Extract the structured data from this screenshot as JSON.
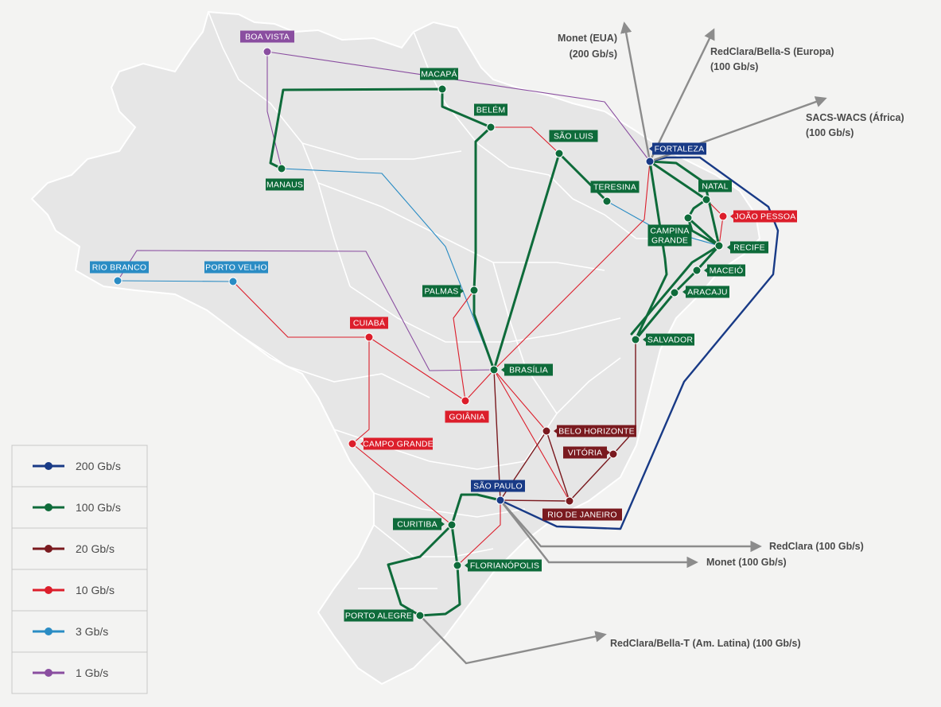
{
  "colors": {
    "c200": "#183a86",
    "c100": "#0e6b3a",
    "c20": "#7a1a1f",
    "c10": "#dc1e2b",
    "c3": "#2a8cc4",
    "c1": "#8a4ea0",
    "intl": "#8c8c8c",
    "land": "#e6e6e6",
    "border": "#ffffff"
  },
  "legend": [
    {
      "speed": "200",
      "label": "200 Gb/s"
    },
    {
      "speed": "100",
      "label": "100 Gb/s"
    },
    {
      "speed": "20",
      "label": "20 Gb/s"
    },
    {
      "speed": "10",
      "label": "10 Gb/s"
    },
    {
      "speed": "3",
      "label": "3 Gb/s"
    },
    {
      "speed": "1",
      "label": "1 Gb/s"
    }
  ],
  "nodes": [
    {
      "id": "boavista",
      "lines": [
        "BOA VISTA"
      ],
      "speed": "1"
    },
    {
      "id": "macapa",
      "lines": [
        "MACAPÁ"
      ],
      "speed": "100"
    },
    {
      "id": "belem",
      "lines": [
        "BELÉM"
      ],
      "speed": "100"
    },
    {
      "id": "manaus",
      "lines": [
        "MANAUS"
      ],
      "speed": "100"
    },
    {
      "id": "saoluis",
      "lines": [
        "SÃO LUIS"
      ],
      "speed": "100"
    },
    {
      "id": "teresina",
      "lines": [
        "TERESINA"
      ],
      "speed": "100"
    },
    {
      "id": "fortaleza",
      "lines": [
        "FORTALEZA"
      ],
      "speed": "200"
    },
    {
      "id": "natal",
      "lines": [
        "NATAL"
      ],
      "speed": "100"
    },
    {
      "id": "joaopessoa",
      "lines": [
        "JOÃO PESSOA"
      ],
      "speed": "10"
    },
    {
      "id": "campinagrande",
      "lines": [
        "CAMPINA",
        "GRANDE"
      ],
      "speed": "100"
    },
    {
      "id": "recife",
      "lines": [
        "RECIFE"
      ],
      "speed": "100"
    },
    {
      "id": "maceio",
      "lines": [
        "MACEIÓ"
      ],
      "speed": "100"
    },
    {
      "id": "aracaju",
      "lines": [
        "ARACAJU"
      ],
      "speed": "100"
    },
    {
      "id": "salvador",
      "lines": [
        "SALVADOR"
      ],
      "speed": "100"
    },
    {
      "id": "riobranco",
      "lines": [
        "RIO BRANCO"
      ],
      "speed": "3"
    },
    {
      "id": "portovelho",
      "lines": [
        "PORTO VELHO"
      ],
      "speed": "3"
    },
    {
      "id": "palmas",
      "lines": [
        "PALMAS"
      ],
      "speed": "100"
    },
    {
      "id": "cuiaba",
      "lines": [
        "CUIABÁ"
      ],
      "speed": "10"
    },
    {
      "id": "brasilia",
      "lines": [
        "BRASÍLIA"
      ],
      "speed": "100"
    },
    {
      "id": "goiania",
      "lines": [
        "GOIÂNIA"
      ],
      "speed": "10"
    },
    {
      "id": "belohorizonte",
      "lines": [
        "BELO HORIZONTE"
      ],
      "speed": "20"
    },
    {
      "id": "vitoria",
      "lines": [
        "VITÓRIA"
      ],
      "speed": "20"
    },
    {
      "id": "campogrande",
      "lines": [
        "CAMPO GRANDE"
      ],
      "speed": "10"
    },
    {
      "id": "saopaulo",
      "lines": [
        "SÃO PAULO"
      ],
      "speed": "200"
    },
    {
      "id": "riodejaneiro",
      "lines": [
        "RIO DE JANEIRO"
      ],
      "speed": "20"
    },
    {
      "id": "curitiba",
      "lines": [
        "CURITIBA"
      ],
      "speed": "100"
    },
    {
      "id": "florianopolis",
      "lines": [
        "FLORIANÓPOLIS"
      ],
      "speed": "100"
    },
    {
      "id": "portoalegre",
      "lines": [
        "PORTO ALEGRE"
      ],
      "speed": "100"
    }
  ],
  "links": [
    {
      "speed": "200",
      "from": "fortaleza",
      "to": "saopaulo"
    },
    {
      "speed": "100",
      "from": "manaus",
      "to": "belem"
    },
    {
      "speed": "100",
      "from": "belem",
      "to": "brasilia"
    },
    {
      "speed": "100",
      "from": "saoluis",
      "to": "brasilia"
    },
    {
      "speed": "100",
      "from": "saoluis",
      "to": "teresina"
    },
    {
      "speed": "100",
      "from": "fortaleza",
      "to": "natal"
    },
    {
      "speed": "100",
      "from": "natal",
      "to": "campinagrande"
    },
    {
      "speed": "100",
      "from": "campinagrande",
      "to": "recife"
    },
    {
      "speed": "100",
      "from": "fortaleza",
      "to": "salvador"
    },
    {
      "speed": "100",
      "from": "fortaleza",
      "to": "recife"
    },
    {
      "speed": "100",
      "from": "recife",
      "to": "maceio"
    },
    {
      "speed": "100",
      "from": "maceio",
      "to": "aracaju"
    },
    {
      "speed": "100",
      "from": "aracaju",
      "to": "salvador"
    },
    {
      "speed": "100",
      "from": "saopaulo",
      "to": "curitiba"
    },
    {
      "speed": "100",
      "from": "curitiba",
      "to": "florianopolis"
    },
    {
      "speed": "100",
      "from": "florianopolis",
      "to": "portoalegre"
    },
    {
      "speed": "100",
      "from": "curitiba",
      "to": "portoalegre"
    },
    {
      "speed": "20",
      "from": "brasilia",
      "to": "saopaulo"
    },
    {
      "speed": "20",
      "from": "saopaulo",
      "to": "belohorizonte"
    },
    {
      "speed": "20",
      "from": "belohorizonte",
      "to": "riodejaneiro"
    },
    {
      "speed": "20",
      "from": "saopaulo",
      "to": "riodejaneiro"
    },
    {
      "speed": "20",
      "from": "riodejaneiro",
      "to": "vitoria"
    },
    {
      "speed": "20",
      "from": "vitoria",
      "to": "salvador"
    },
    {
      "speed": "10",
      "from": "portovelho",
      "to": "cuiaba"
    },
    {
      "speed": "10",
      "from": "cuiaba",
      "to": "goiania"
    },
    {
      "speed": "10",
      "from": "cuiaba",
      "to": "campogrande"
    },
    {
      "speed": "10",
      "from": "campogrande",
      "to": "curitiba"
    },
    {
      "speed": "10",
      "from": "goiania",
      "to": "palmas"
    },
    {
      "speed": "10",
      "from": "goiania",
      "to": "brasilia"
    },
    {
      "speed": "10",
      "from": "brasilia",
      "to": "belohorizonte"
    },
    {
      "speed": "10",
      "from": "brasilia",
      "to": "riodejaneiro"
    },
    {
      "speed": "10",
      "from": "brasilia",
      "to": "fortaleza"
    },
    {
      "speed": "10",
      "from": "belem",
      "to": "saoluis"
    },
    {
      "speed": "10",
      "from": "natal",
      "to": "joaopessoa"
    },
    {
      "speed": "10",
      "from": "joaopessoa",
      "to": "recife"
    },
    {
      "speed": "10",
      "from": "saopaulo",
      "to": "florianopolis"
    },
    {
      "speed": "3",
      "from": "riobranco",
      "to": "portovelho"
    },
    {
      "speed": "3",
      "from": "manaus",
      "to": "brasilia"
    },
    {
      "speed": "3",
      "from": "teresina",
      "to": "recife"
    },
    {
      "speed": "1",
      "from": "boavista",
      "to": "manaus"
    },
    {
      "speed": "1",
      "from": "boavista",
      "to": "fortaleza"
    },
    {
      "speed": "1",
      "from": "riobranco",
      "to": "brasilia"
    }
  ],
  "international": [
    {
      "id": "monet-eua",
      "lines": [
        "Monet (EUA)",
        "(200 Gb/s)"
      ]
    },
    {
      "id": "redclara-bella-s",
      "lines": [
        "RedClara/Bella-S (Europa)",
        "(100 Gb/s)"
      ]
    },
    {
      "id": "sacs-wacs",
      "lines": [
        "SACS-WACS (África)",
        "(100 Gb/s)"
      ]
    },
    {
      "id": "redclara",
      "lines": [
        "RedClara (100 Gb/s)"
      ]
    },
    {
      "id": "monet",
      "lines": [
        "Monet (100 Gb/s)"
      ]
    },
    {
      "id": "redclara-bella-t",
      "lines": [
        "RedClara/Bella-T (Am. Latina) (100 Gb/s)"
      ]
    }
  ]
}
